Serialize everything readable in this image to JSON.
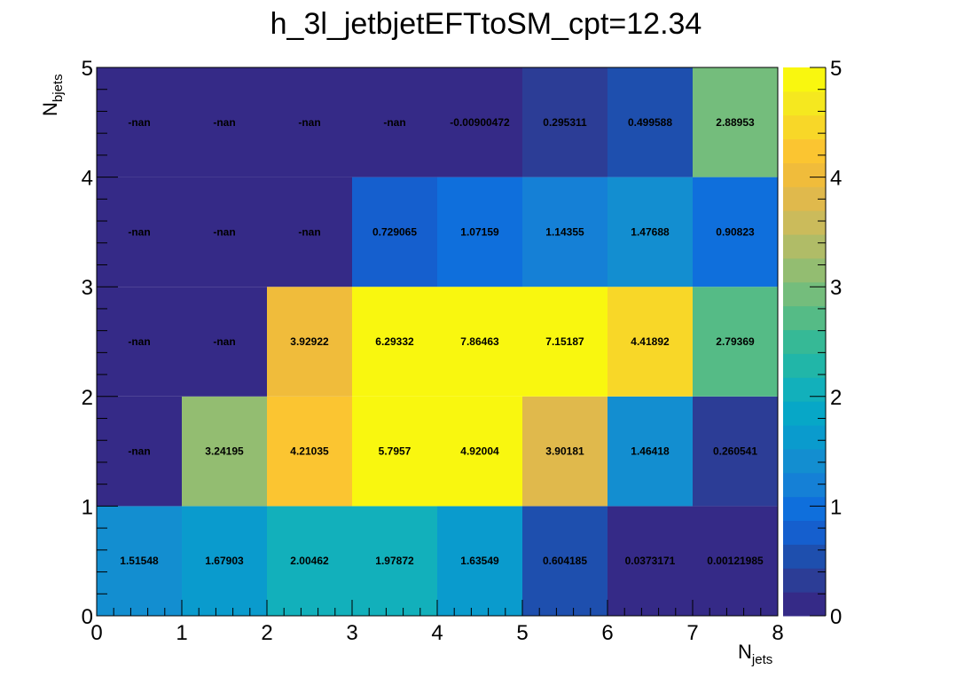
{
  "chart_data": {
    "type": "heatmap",
    "title": "h_3l_jetbjetEFTtoSM_cpt=12.34",
    "xlabel": "N",
    "xlabel_sub": "jets",
    "ylabel": "N",
    "ylabel_sub": "bjets",
    "x_edges": [
      0,
      1,
      2,
      3,
      4,
      5,
      6,
      7,
      8
    ],
    "y_edges": [
      0,
      1,
      2,
      3,
      4,
      5
    ],
    "xlim": [
      0,
      8
    ],
    "ylim": [
      0,
      5
    ],
    "x_ticks": [
      "0",
      "1",
      "2",
      "3",
      "4",
      "5",
      "6",
      "7",
      "8"
    ],
    "y_ticks": [
      "0",
      "1",
      "2",
      "3",
      "4",
      "5"
    ],
    "z_range": [
      0,
      5
    ],
    "z_ticks": [
      "0",
      "1",
      "2",
      "3",
      "4",
      "5"
    ],
    "palette": [
      "#352a87",
      "#2c3d96",
      "#1e4fae",
      "#155fce",
      "#0f6fdc",
      "#1580d6",
      "#138ed0",
      "#0a9bcd",
      "#07a7c7",
      "#12b0bb",
      "#21b6a8",
      "#36b996",
      "#55bb86",
      "#74bd7c",
      "#93bd71",
      "#b0bc67",
      "#cbbb5b",
      "#e0b94c",
      "#f0bc3b",
      "#fbc531",
      "#f8d728",
      "#f5e81f",
      "#f9f70f"
    ],
    "rows": [
      {
        "y": "0-1",
        "values": [
          1.51548,
          1.67903,
          2.00462,
          1.97872,
          1.63549,
          0.604185,
          0.0373171,
          0.00121985
        ],
        "labels": [
          "1.51548",
          "1.67903",
          "2.00462",
          "1.97872",
          "1.63549",
          "0.604185",
          "0.0373171",
          "0.00121985"
        ]
      },
      {
        "y": "1-2",
        "values": [
          null,
          3.24195,
          4.21035,
          5.7957,
          4.92004,
          3.90181,
          1.46418,
          0.260541
        ],
        "labels": [
          "-nan",
          "3.24195",
          "4.21035",
          "5.7957",
          "4.92004",
          "3.90181",
          "1.46418",
          "0.260541"
        ]
      },
      {
        "y": "2-3",
        "values": [
          null,
          null,
          3.92922,
          6.29332,
          7.86463,
          7.15187,
          4.41892,
          2.79369
        ],
        "labels": [
          "-nan",
          "-nan",
          "3.92922",
          "6.29332",
          "7.86463",
          "7.15187",
          "4.41892",
          "2.79369"
        ]
      },
      {
        "y": "3-4",
        "values": [
          null,
          null,
          null,
          0.729065,
          1.07159,
          1.14355,
          1.47688,
          0.90823
        ],
        "labels": [
          "-nan",
          "-nan",
          "-nan",
          "0.729065",
          "1.07159",
          "1.14355",
          "1.47688",
          "0.90823"
        ]
      },
      {
        "y": "4-5",
        "values": [
          null,
          null,
          null,
          null,
          -0.00900472,
          0.295311,
          0.499588,
          2.88953
        ],
        "labels": [
          "-nan",
          "-nan",
          "-nan",
          "-nan",
          "-0.00900472",
          "0.295311",
          "0.499588",
          "2.88953"
        ]
      }
    ]
  }
}
